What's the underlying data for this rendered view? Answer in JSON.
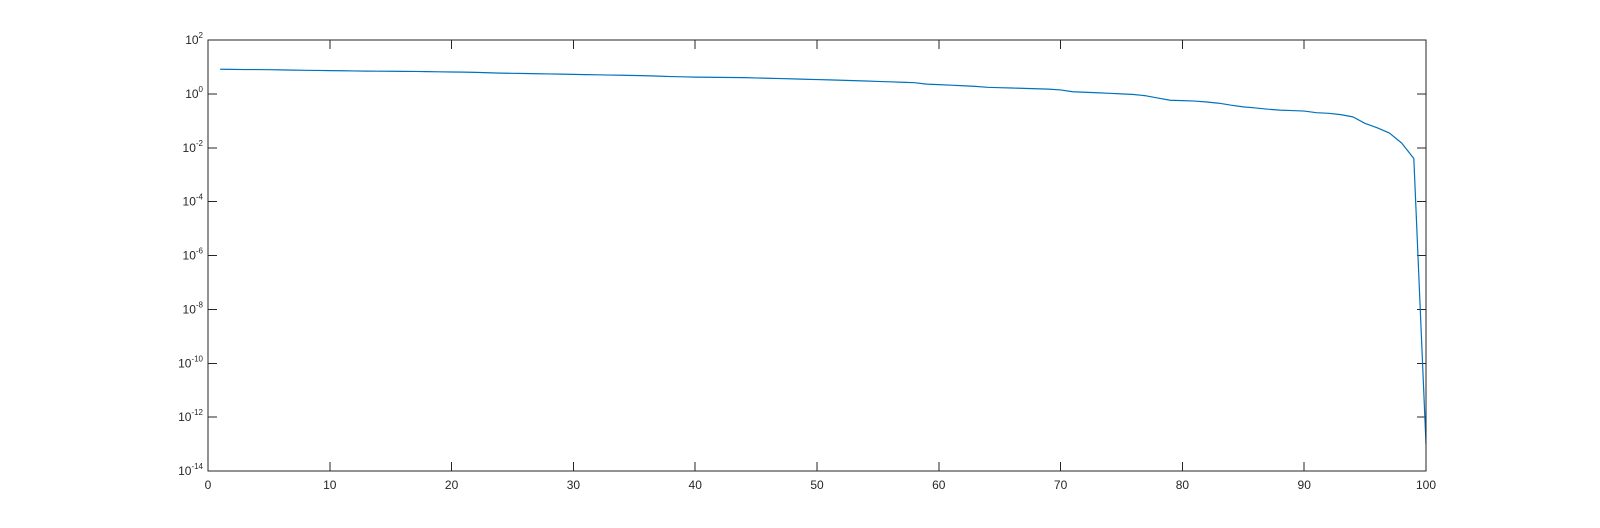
{
  "chart_data": {
    "type": "line",
    "title": "",
    "xlabel": "",
    "ylabel": "",
    "xlim": [
      0,
      100
    ],
    "ylim": [
      1e-14,
      100
    ],
    "yscale": "log",
    "grid": false,
    "box": true,
    "x_ticks": [
      0,
      10,
      20,
      30,
      40,
      50,
      60,
      70,
      80,
      90,
      100
    ],
    "x_tick_labels": [
      "0",
      "10",
      "20",
      "30",
      "40",
      "50",
      "60",
      "70",
      "80",
      "90",
      "100"
    ],
    "y_ticks": [
      100.0,
      1.0,
      0.01,
      0.0001,
      1e-06,
      1e-08,
      1e-10,
      1e-12,
      1e-14
    ],
    "y_tick_labels": [
      {
        "base": "10",
        "exp": "2"
      },
      {
        "base": "10",
        "exp": "0"
      },
      {
        "base": "10",
        "exp": "-2"
      },
      {
        "base": "10",
        "exp": "-4"
      },
      {
        "base": "10",
        "exp": "-6"
      },
      {
        "base": "10",
        "exp": "-8"
      },
      {
        "base": "10",
        "exp": "-10"
      },
      {
        "base": "10",
        "exp": "-12"
      },
      {
        "base": "10",
        "exp": "-14"
      }
    ],
    "series": [
      {
        "color": "#0072BD",
        "x": [
          1,
          2,
          3,
          4,
          5,
          6,
          7,
          8,
          9,
          10,
          11,
          12,
          13,
          14,
          15,
          16,
          17,
          18,
          19,
          20,
          21,
          22,
          23,
          24,
          25,
          26,
          27,
          28,
          29,
          30,
          31,
          32,
          33,
          34,
          35,
          36,
          37,
          38,
          39,
          40,
          41,
          42,
          43,
          44,
          45,
          46,
          47,
          48,
          49,
          50,
          51,
          52,
          53,
          54,
          55,
          56,
          57,
          58,
          59,
          60,
          61,
          62,
          63,
          64,
          65,
          66,
          67,
          68,
          69,
          70,
          71,
          72,
          73,
          74,
          75,
          76,
          77,
          78,
          79,
          80,
          81,
          82,
          83,
          84,
          85,
          86,
          87,
          88,
          89,
          90,
          91,
          92,
          93,
          94,
          95,
          96,
          97,
          98,
          99,
          100
        ],
        "y": [
          8.2,
          8.1,
          8.0,
          8.0,
          7.9,
          7.8,
          7.6,
          7.5,
          7.4,
          7.3,
          7.2,
          7.1,
          7.0,
          6.95,
          6.9,
          6.85,
          6.8,
          6.7,
          6.6,
          6.5,
          6.4,
          6.3,
          6.1,
          5.9,
          5.8,
          5.7,
          5.6,
          5.5,
          5.4,
          5.3,
          5.2,
          5.1,
          5.0,
          4.9,
          4.8,
          4.7,
          4.55,
          4.4,
          4.3,
          4.2,
          4.15,
          4.1,
          4.05,
          4.0,
          3.9,
          3.8,
          3.7,
          3.6,
          3.5,
          3.4,
          3.3,
          3.2,
          3.1,
          3.0,
          2.9,
          2.8,
          2.7,
          2.6,
          2.3,
          2.2,
          2.1,
          2.0,
          1.9,
          1.75,
          1.7,
          1.65,
          1.6,
          1.55,
          1.5,
          1.4,
          1.2,
          1.15,
          1.1,
          1.05,
          1.0,
          0.95,
          0.85,
          0.7,
          0.58,
          0.56,
          0.54,
          0.5,
          0.45,
          0.38,
          0.33,
          0.3,
          0.27,
          0.25,
          0.24,
          0.23,
          0.2,
          0.19,
          0.17,
          0.14,
          0.08,
          0.055,
          0.035,
          0.015,
          0.004,
          1e-13
        ]
      }
    ]
  }
}
